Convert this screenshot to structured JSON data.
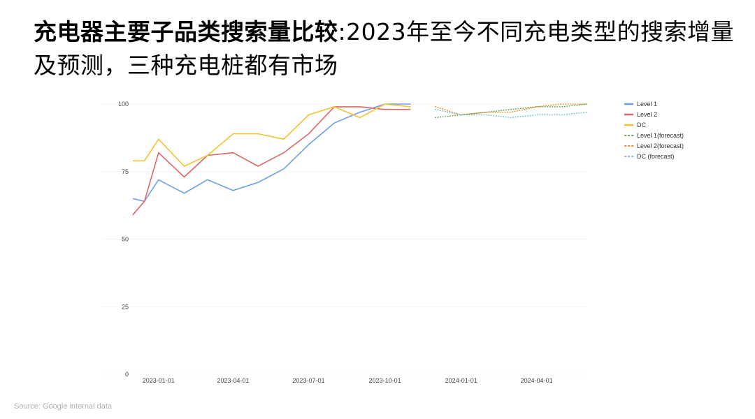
{
  "slide": {
    "title_bold": "充电器主要子品类搜索量比较",
    "title_rest": ":2023年至今不同充电类型的搜索增量及预测，三种充电桩都有市场",
    "source": "Source: Google internal data"
  },
  "chart_data": {
    "type": "line",
    "title": "",
    "xlabel": "",
    "ylabel": "",
    "ylim": [
      0,
      100
    ],
    "yticks": [
      0,
      25,
      50,
      75,
      100
    ],
    "xtick_labels": [
      "2023-01-01",
      "2023-04-01",
      "2023-07-01",
      "2023-10-01",
      "2024-01-01",
      "2024-04-01"
    ],
    "legend_position": "top-right",
    "grid": true,
    "series": [
      {
        "name": "Level 1",
        "color": "#6d9eeb",
        "dash": "solid",
        "x": [
          "2022-12-01",
          "2022-12-15",
          "2023-01-01",
          "2023-02-01",
          "2023-03-01",
          "2023-04-01",
          "2023-05-01",
          "2023-06-01",
          "2023-07-01",
          "2023-08-01",
          "2023-09-01",
          "2023-10-01",
          "2023-11-01"
        ],
        "values": [
          65,
          64,
          72,
          67,
          72,
          68,
          71,
          76,
          85,
          93,
          97,
          100,
          100
        ]
      },
      {
        "name": "Level 2",
        "color": "#e06666",
        "dash": "solid",
        "x": [
          "2022-12-01",
          "2022-12-15",
          "2023-01-01",
          "2023-02-01",
          "2023-03-01",
          "2023-04-01",
          "2023-05-01",
          "2023-06-01",
          "2023-07-01",
          "2023-08-01",
          "2023-09-01",
          "2023-10-01",
          "2023-11-01"
        ],
        "values": [
          59,
          64,
          82,
          73,
          81,
          82,
          77,
          82,
          89,
          99,
          99,
          98,
          98
        ]
      },
      {
        "name": "DC",
        "color": "#f1c232",
        "dash": "solid",
        "x": [
          "2022-12-01",
          "2022-12-15",
          "2023-01-01",
          "2023-02-01",
          "2023-03-01",
          "2023-04-01",
          "2023-05-01",
          "2023-06-01",
          "2023-07-01",
          "2023-08-01",
          "2023-09-01",
          "2023-10-01",
          "2023-11-01"
        ],
        "values": [
          79,
          79,
          87,
          77,
          81,
          89,
          89,
          87,
          96,
          99,
          95,
          100,
          99
        ]
      },
      {
        "name": "Level 1(forecast)",
        "color": "#6aa84f",
        "dash": "dotted",
        "x": [
          "2023-12-01",
          "2024-01-01",
          "2024-02-01",
          "2024-03-01",
          "2024-04-01",
          "2024-05-01",
          "2024-06-01"
        ],
        "values": [
          95,
          96,
          97,
          98,
          99,
          99,
          100
        ]
      },
      {
        "name": "Level 2(forecast)",
        "color": "#e69138",
        "dash": "dotted",
        "x": [
          "2023-12-01",
          "2024-01-01",
          "2024-02-01",
          "2024-03-01",
          "2024-04-01",
          "2024-05-01",
          "2024-06-01"
        ],
        "values": [
          99,
          96,
          97,
          97,
          99,
          100,
          100
        ]
      },
      {
        "name": "DC (forecast)",
        "color": "#76c5d8",
        "dash": "dotted",
        "x": [
          "2023-12-01",
          "2024-01-01",
          "2024-02-01",
          "2024-03-01",
          "2024-04-01",
          "2024-05-01",
          "2024-06-01"
        ],
        "values": [
          98,
          96,
          96,
          95,
          96,
          96,
          97
        ]
      }
    ]
  }
}
